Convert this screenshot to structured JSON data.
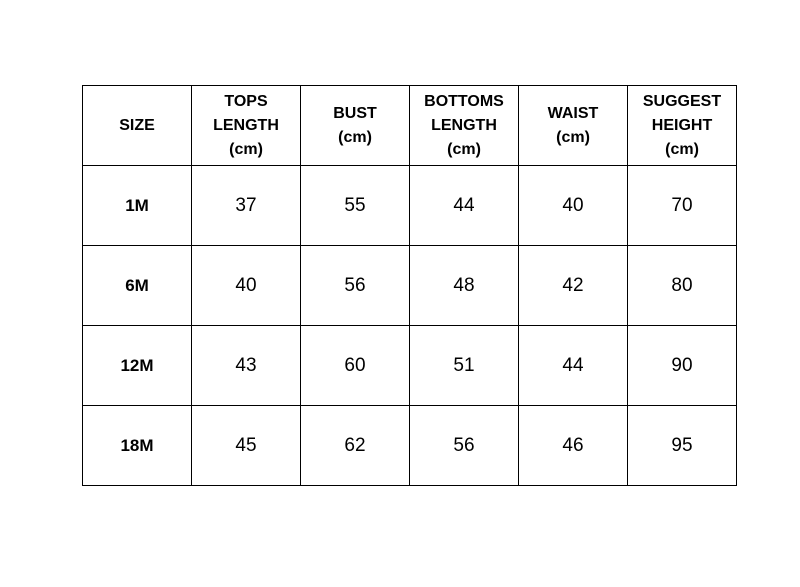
{
  "size_chart": {
    "headers": [
      "SIZE",
      "TOPS\nLENGTH\n(cm)",
      "BUST\n(cm)",
      "BOTTOMS\nLENGTH\n(cm)",
      "WAIST\n(cm)",
      "SUGGEST\nHEIGHT\n(cm)"
    ],
    "rows": [
      [
        "1M",
        "37",
        "55",
        "44",
        "40",
        "70"
      ],
      [
        "6M",
        "40",
        "56",
        "48",
        "42",
        "80"
      ],
      [
        "12M",
        "43",
        "60",
        "51",
        "44",
        "90"
      ],
      [
        "18M",
        "45",
        "62",
        "56",
        "46",
        "95"
      ]
    ]
  }
}
